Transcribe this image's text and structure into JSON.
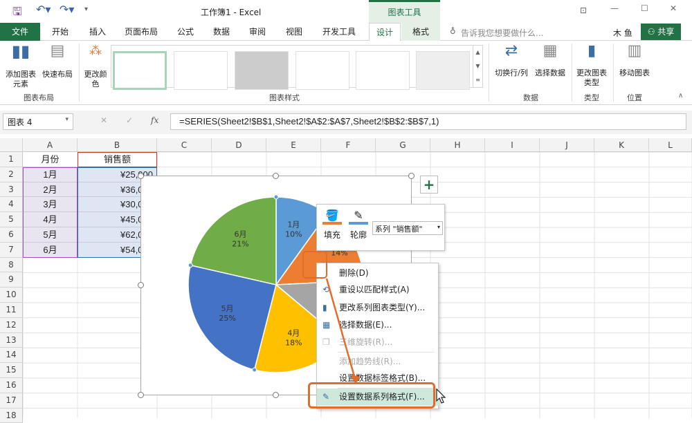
{
  "titlebar": {
    "title": "工作簿1 - Excel",
    "contextual": "图表工具",
    "icons": [
      "save-icon",
      "undo-icon",
      "redo-icon",
      "customize-icon",
      "ribbon-display-icon",
      "minimize-icon",
      "maximize-icon",
      "close-icon"
    ]
  },
  "tabs": [
    "文件",
    "开始",
    "插入",
    "页面布局",
    "公式",
    "数据",
    "审阅",
    "视图",
    "开发工具",
    "设计",
    "格式"
  ],
  "tell_me": "告诉我您想要做什么...",
  "user": "木 鱼",
  "share": "共享",
  "ribbon": {
    "add_element": "添加图表元素",
    "quick_layout": "快速布局",
    "change_colors": "更改颜色",
    "switch": "切换行/列",
    "select_data": "选择数据",
    "change_type": "更改图表类型",
    "move_chart": "移动图表",
    "groups": {
      "layout": "图表布局",
      "styles": "图表样式",
      "data": "数据",
      "type": "类型",
      "location": "位置"
    }
  },
  "namebox": "图表 4",
  "formula": "=SERIES(Sheet2!$B$1,Sheet2!$A$2:$A$7,Sheet2!$B$2:$B$7,1)",
  "fx": "fx",
  "columns": [
    "A",
    "B",
    "C",
    "D",
    "E",
    "F",
    "G",
    "H",
    "I",
    "J",
    "K",
    "L"
  ],
  "rows": [
    "1",
    "2",
    "3",
    "4",
    "5",
    "6",
    "7",
    "8",
    "9",
    "10",
    "11",
    "12",
    "13",
    "14",
    "15",
    "16",
    "17",
    "18"
  ],
  "table": {
    "headers": [
      "月份",
      "销售额"
    ],
    "rows": [
      [
        "1月",
        "¥25,000"
      ],
      [
        "2月",
        "¥36,000"
      ],
      [
        "3月",
        "¥30,000"
      ],
      [
        "4月",
        "¥45,000"
      ],
      [
        "5月",
        "¥62,000"
      ],
      [
        "6月",
        "¥54,000"
      ]
    ]
  },
  "chart_data": {
    "type": "pie",
    "categories": [
      "1月",
      "2月",
      "3月",
      "4月",
      "5月",
      "6月"
    ],
    "values": [
      25000,
      36000,
      30000,
      45000,
      62000,
      54000
    ],
    "labels": [
      [
        "1月",
        "10%"
      ],
      [
        "",
        "14%"
      ],
      [
        "",
        ""
      ],
      [
        "4月",
        "18%"
      ],
      [
        "5月",
        "25%"
      ],
      [
        "6月",
        "21%"
      ]
    ],
    "colors": [
      "#5B9BD5",
      "#ED7D31",
      "#A5A5A5",
      "#FFC000",
      "#4472C4",
      "#70AD47"
    ]
  },
  "minitoolbar": {
    "fill": "填充",
    "outline": "轮廓",
    "series": "系列 \"销售额\""
  },
  "context_menu": [
    {
      "label": "删除(D)",
      "disabled": false,
      "icon": ""
    },
    {
      "label": "重设以匹配样式(A)",
      "disabled": false,
      "icon": "reset-icon"
    },
    {
      "label": "更改系列图表类型(Y)...",
      "disabled": false,
      "icon": "chart-type-icon"
    },
    {
      "label": "选择数据(E)...",
      "disabled": false,
      "icon": "select-data-icon"
    },
    {
      "label": "三维旋转(R)...",
      "disabled": true,
      "icon": "rotate-3d-icon"
    },
    {
      "label": "添加趋势线(R)...",
      "disabled": true,
      "icon": ""
    },
    {
      "label": "设置数据标签格式(B)...",
      "disabled": false,
      "icon": ""
    },
    {
      "label": "设置数据系列格式(F)...",
      "disabled": false,
      "icon": "format-series-icon",
      "highlighted": true
    }
  ],
  "accent": "#217346",
  "highlight": "#E46C2B"
}
